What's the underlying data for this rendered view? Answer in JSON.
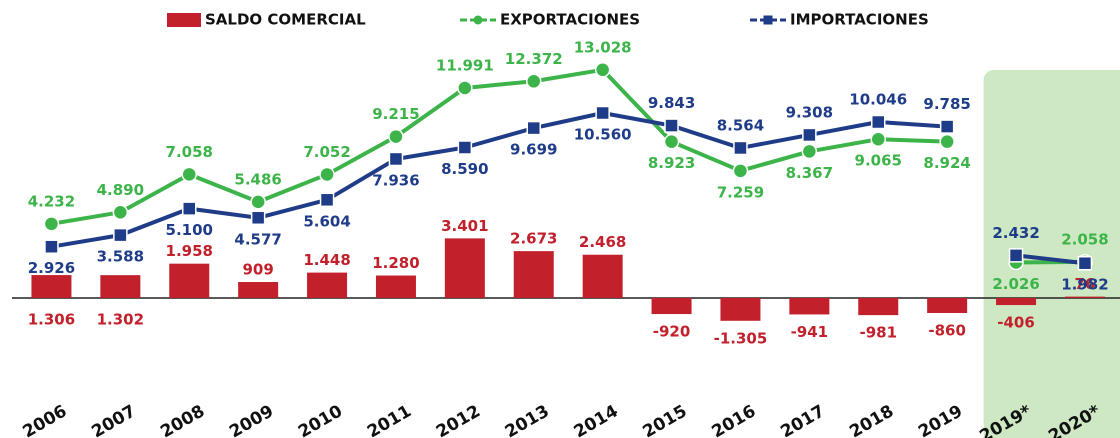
{
  "chart_data": {
    "type": "bar-line",
    "categories": [
      "2006",
      "2007",
      "2008",
      "2009",
      "2010",
      "2011",
      "2012",
      "2013",
      "2014",
      "2015",
      "2016",
      "2017",
      "2018",
      "2019",
      "2019*",
      "2020*"
    ],
    "highlight_start": 14,
    "ylim": [
      -4000,
      15300
    ],
    "series": [
      {
        "name": "SALDO COMERCIAL",
        "type": "bar",
        "color": "#c2202b",
        "values": [
          1306,
          1302,
          1958,
          909,
          1448,
          1280,
          3401,
          2673,
          2468,
          -920,
          -1305,
          -941,
          -981,
          -860,
          -406,
          76
        ],
        "value_labels": [
          "1.306",
          "1.302",
          "1.958",
          "909",
          "1.448",
          "1.280",
          "3.401",
          "2.673",
          "2.468",
          "-920",
          "-1.305",
          "-941",
          "-981",
          "-860",
          "-406",
          "76"
        ]
      },
      {
        "name": "EXPORTACIONES",
        "type": "line",
        "marker": "circle",
        "color": "#3cb44a",
        "values": [
          4232,
          4890,
          7058,
          5486,
          7052,
          9215,
          11991,
          12372,
          13028,
          8923,
          7259,
          8367,
          9065,
          8924,
          2026,
          2058
        ],
        "value_labels": [
          "4.232",
          "4.890",
          "7.058",
          "5.486",
          "7.052",
          "9.215",
          "11.991",
          "12.372",
          "13.028",
          "8.923",
          "7.259",
          "8.367",
          "9.065",
          "8.924",
          "2.026",
          "2.058"
        ]
      },
      {
        "name": "IMPORTACIONES",
        "type": "line",
        "marker": "square",
        "color": "#1f3c88",
        "values": [
          2926,
          3588,
          5100,
          4577,
          5604,
          7936,
          8590,
          9699,
          10560,
          9843,
          8564,
          9308,
          10046,
          9785,
          2432,
          1982
        ],
        "value_labels": [
          "2.926",
          "3.588",
          "5.100",
          "4.577",
          "5.604",
          "7.936",
          "8.590",
          "9.699",
          "10.560",
          "9.843",
          "8.564",
          "9.308",
          "10.046",
          "9.785",
          "2.432",
          "1.982"
        ]
      }
    ]
  }
}
